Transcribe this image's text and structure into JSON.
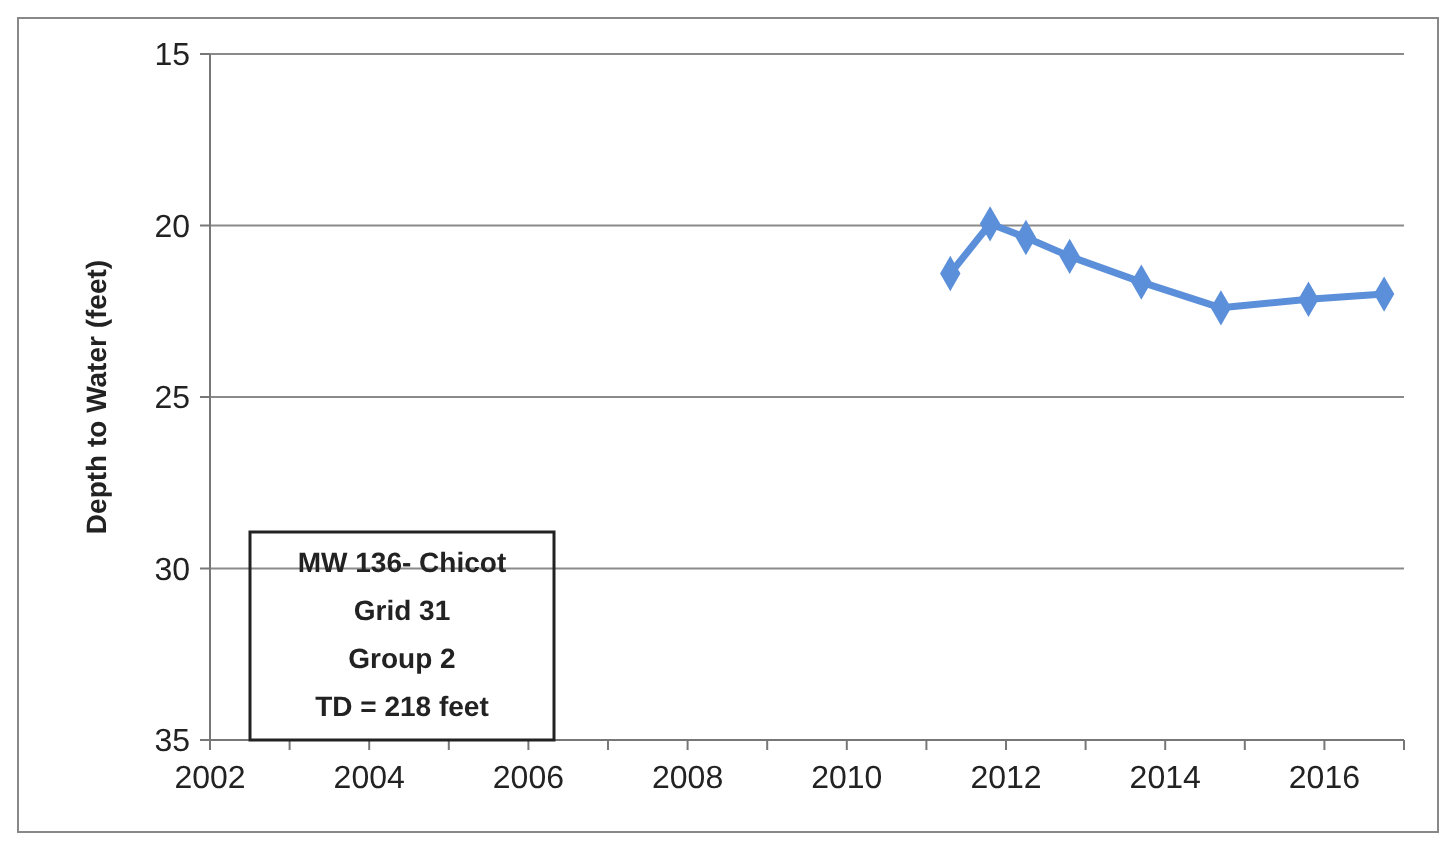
{
  "chart_data": {
    "type": "line",
    "ylabel": "Depth to Water (feet)",
    "x": [
      2011.3,
      2011.8,
      2012.25,
      2012.8,
      2013.7,
      2014.7,
      2015.8,
      2016.75
    ],
    "series": [
      {
        "color": "#5b8fd9",
        "values": [
          21.4,
          19.95,
          20.35,
          20.9,
          21.65,
          22.4,
          22.15,
          22.0
        ]
      }
    ],
    "xlim": [
      2002,
      2017
    ],
    "xticks": [
      2002,
      2004,
      2006,
      2008,
      2010,
      2012,
      2014,
      2016
    ],
    "ylim": [
      35,
      15
    ],
    "yticks": [
      15,
      20,
      25,
      30,
      35
    ],
    "grid": "y",
    "marker": "diamond",
    "line_style": "solid",
    "annotations": [
      "MW 136- Chicot\nGrid 31\nGroup 2\nTD = 218 feet"
    ]
  }
}
